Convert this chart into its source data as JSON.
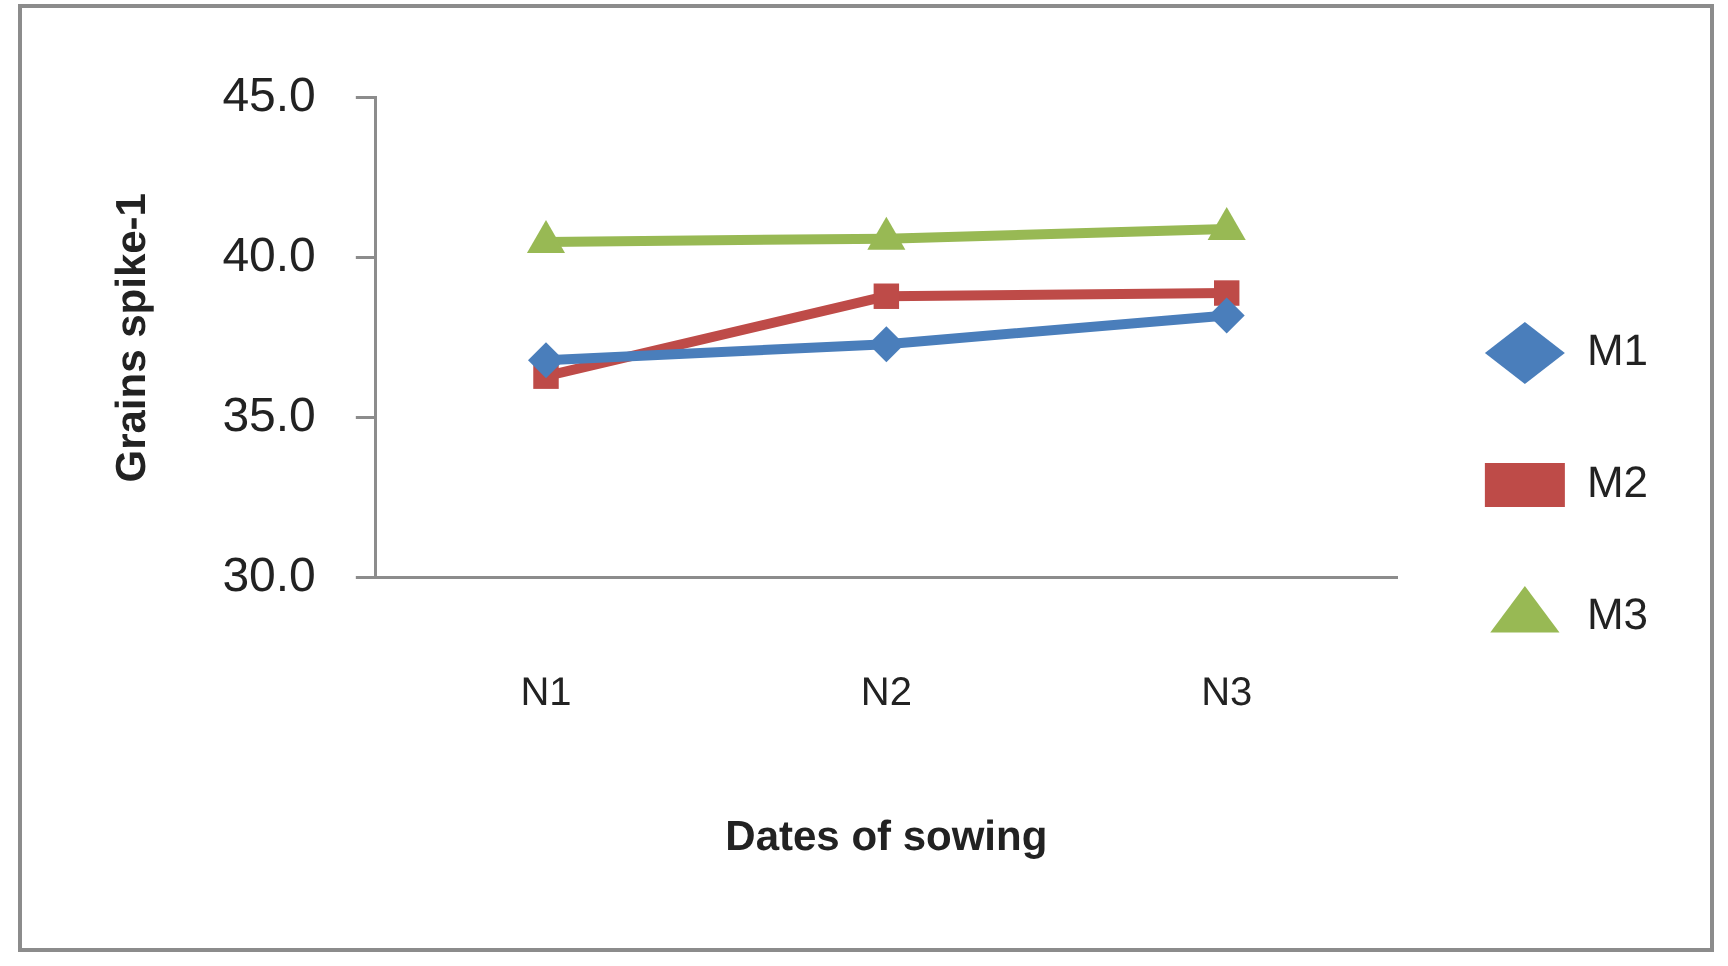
{
  "chart_data": {
    "type": "line",
    "xlabel": "Dates of sowing",
    "ylabel": "Grains spike-1",
    "categories": [
      "N1",
      "N2",
      "N3"
    ],
    "series": [
      {
        "name": "M1",
        "color": "#4a7ebb",
        "marker": "diamond",
        "values": [
          36.8,
          37.3,
          38.2
        ]
      },
      {
        "name": "M2",
        "color": "#be4b48",
        "marker": "square",
        "values": [
          36.3,
          38.8,
          38.9
        ]
      },
      {
        "name": "M3",
        "color": "#98b954",
        "marker": "triangle",
        "values": [
          40.5,
          40.6,
          40.9
        ]
      }
    ],
    "ylim": [
      30,
      45
    ],
    "yticks": [
      {
        "value": 30,
        "label": "30.0"
      },
      {
        "value": 35,
        "label": "35.0"
      },
      {
        "value": 40,
        "label": "40.0"
      },
      {
        "value": 45,
        "label": "45.0"
      }
    ],
    "legend": "right"
  }
}
